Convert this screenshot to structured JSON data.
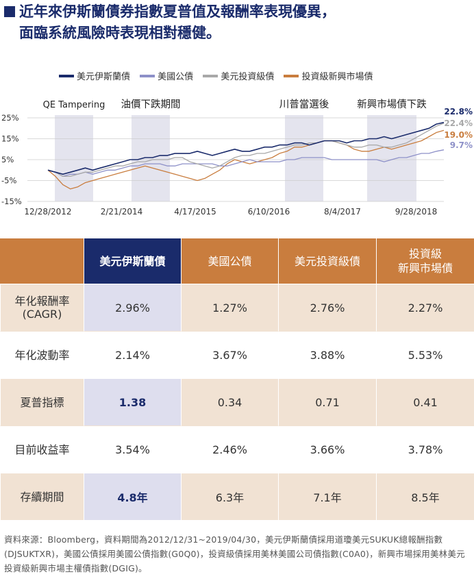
{
  "title": {
    "line1": "近年來伊斯蘭債券指數夏普值及報酬率表現優異，",
    "line2": "面臨系統風險時表現相對穩健。"
  },
  "legend": [
    {
      "label": "美元伊斯蘭債",
      "color": "#1a2b6b"
    },
    {
      "label": "美國公債",
      "color": "#8d90c8"
    },
    {
      "label": "美元投資級債",
      "color": "#a8a8a8"
    },
    {
      "label": "投資級新興市場債",
      "color": "#c97d3e"
    }
  ],
  "chart_data": {
    "type": "line",
    "x_ticks": [
      "12/28/2012",
      "2/21/2014",
      "4/17/2015",
      "6/10/2016",
      "8/4/2017",
      "9/28/2018"
    ],
    "y_ticks": [
      "25%",
      "15%",
      "5%",
      "-5%",
      "-15%"
    ],
    "ylim": [
      -15,
      25
    ],
    "shaded_periods": [
      {
        "label": "QE Tampering",
        "start": "5/2013",
        "end": "12/2013"
      },
      {
        "label": "油價下跌期間",
        "start": "7/2014",
        "end": "2/2015"
      },
      {
        "label": "川普當選後",
        "start": "11/2016",
        "end": "6/2017"
      },
      {
        "label": "新興市場債下跌",
        "start": "2/2018",
        "end": "11/2018"
      }
    ],
    "end_labels": [
      {
        "text": "22.8%",
        "series": "美元伊斯蘭債"
      },
      {
        "text": "22.4%",
        "series": "美元投資級債"
      },
      {
        "text": "19.0%",
        "series": "投資級新興市場債"
      },
      {
        "text": "9.7%",
        "series": "美國公債"
      }
    ],
    "series": [
      {
        "name": "美元伊斯蘭債",
        "values": [
          0,
          -1,
          -2,
          -1,
          0,
          1,
          0,
          1,
          2,
          3,
          4,
          5,
          5,
          6,
          6,
          7,
          7,
          8,
          8,
          8,
          9,
          8,
          7,
          8,
          9,
          10,
          9,
          9,
          10,
          11,
          11,
          12,
          12,
          13,
          13,
          12,
          13,
          14,
          14,
          14,
          13,
          14,
          14,
          15,
          15,
          16,
          15,
          16,
          17,
          18,
          19,
          20,
          22,
          22.8
        ]
      },
      {
        "name": "美國公債",
        "values": [
          0,
          -1,
          -3,
          -2,
          -2,
          -1,
          -2,
          -1,
          0,
          0,
          1,
          2,
          2,
          3,
          3,
          3,
          2,
          2,
          3,
          3,
          3,
          3,
          3,
          2,
          2,
          3,
          4,
          5,
          4,
          4,
          4,
          4,
          5,
          5,
          6,
          6,
          6,
          6,
          5,
          5,
          5,
          5,
          5,
          5,
          5,
          4,
          5,
          6,
          6,
          7,
          8,
          8,
          9,
          9.7
        ]
      },
      {
        "name": "美元投資級債",
        "values": [
          0,
          -1,
          -3,
          -3,
          -2,
          -1,
          -1,
          0,
          1,
          2,
          2,
          3,
          4,
          4,
          5,
          5,
          5,
          6,
          6,
          4,
          3,
          2,
          1,
          2,
          4,
          6,
          7,
          7,
          8,
          8,
          9,
          10,
          11,
          12,
          12,
          13,
          13,
          14,
          14,
          13,
          12,
          11,
          11,
          12,
          12,
          11,
          11,
          12,
          13,
          15,
          17,
          19,
          21,
          22.4
        ]
      },
      {
        "name": "投資級新興市場債",
        "values": [
          0,
          -3,
          -7,
          -9,
          -8,
          -6,
          -5,
          -4,
          -3,
          -2,
          -1,
          0,
          1,
          2,
          1,
          0,
          -1,
          -2,
          -3,
          -4,
          -5,
          -4,
          -2,
          0,
          3,
          5,
          4,
          3,
          4,
          5,
          6,
          8,
          9,
          11,
          11,
          12,
          13,
          14,
          14,
          13,
          12,
          10,
          9,
          9,
          10,
          11,
          10,
          11,
          12,
          13,
          14,
          16,
          18,
          19.0
        ]
      }
    ]
  },
  "table": {
    "headers": [
      "",
      "美元伊斯蘭債",
      "美國公債",
      "美元投資級債",
      "投資級\n新興市場債"
    ],
    "rows": [
      {
        "label": "年化報酬率\n(CAGR)",
        "values": [
          "2.96%",
          "1.27%",
          "2.76%",
          "2.27%"
        ]
      },
      {
        "label": "年化波動率",
        "values": [
          "2.14%",
          "3.67%",
          "3.88%",
          "5.53%"
        ]
      },
      {
        "label": "夏普指標",
        "values": [
          "1.38",
          "0.34",
          "0.71",
          "0.41"
        ]
      },
      {
        "label": "目前收益率",
        "values": [
          "3.54%",
          "2.46%",
          "3.66%",
          "3.78%"
        ]
      },
      {
        "label": "存續期間",
        "values": [
          "4.8年",
          "6.3年",
          "7.1年",
          "8.5年"
        ]
      }
    ]
  },
  "source": "資料來源：Bloomberg，資料期間為2012/12/31~2019/04/30，美元伊斯蘭債採用道瓊美元SUKUK總報酬指數(DJSUKTXR)，美國公債採用美國公債指數(G0Q0)，投資級債採用美林美國公司債指數(C0A0)，新興市場採用美林美元投資級新興市場主權債指數(DGIG)。"
}
